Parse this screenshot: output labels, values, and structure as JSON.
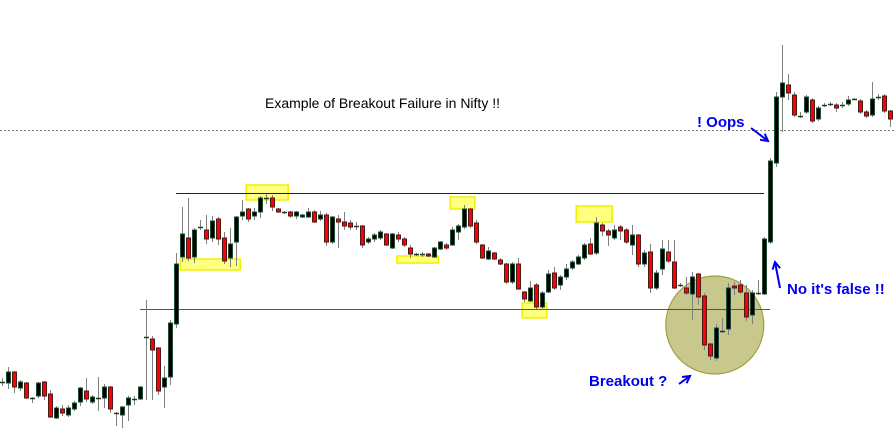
{
  "chart_data": {
    "type": "candlestick",
    "title": "Example of Breakout Failure in Nifty !!",
    "xlabel": "",
    "ylabel": "",
    "axes_visible": false,
    "grid": false,
    "candle_format": [
      "open",
      "high",
      "low",
      "close"
    ],
    "colors": {
      "bull_body": "#000000",
      "bull_outline": "#1f4d33",
      "bear_body": "#ff0000",
      "bear_outline": "#4a1a1a",
      "wick": "#808080",
      "resistance_line": "#0010c8",
      "support_line": "#3048f0",
      "dotted_line": "#808080",
      "highlight": "#ffff80",
      "highlight_border": "#f0f000",
      "circle_fill": "#c8c88c",
      "circle_border": "#a0a040",
      "annotation_text": "#0000ee"
    },
    "candles": [
      [
        48,
        52,
        44,
        48
      ],
      [
        47,
        63,
        41,
        58
      ],
      [
        58,
        59,
        37,
        43
      ],
      [
        42,
        50,
        39,
        48
      ],
      [
        47,
        48,
        31,
        32
      ],
      [
        32,
        33,
        27,
        32
      ],
      [
        34,
        48,
        32,
        47
      ],
      [
        48,
        49,
        30,
        34
      ],
      [
        36,
        40,
        12,
        13
      ],
      [
        12,
        24,
        11,
        22
      ],
      [
        21,
        25,
        14,
        17
      ],
      [
        15,
        25,
        13,
        22
      ],
      [
        21,
        29,
        19,
        27
      ],
      [
        28,
        43,
        24,
        42
      ],
      [
        39,
        52,
        28,
        31
      ],
      [
        28,
        35,
        26,
        33
      ],
      [
        32,
        53,
        19,
        32
      ],
      [
        32,
        46,
        22,
        43
      ],
      [
        43,
        44,
        17,
        21
      ],
      [
        17,
        18,
        4,
        17
      ],
      [
        15,
        24,
        2,
        23
      ],
      [
        25,
        34,
        9,
        32
      ],
      [
        31,
        34,
        25,
        31
      ],
      [
        31,
        44,
        30,
        43
      ],
      [
        93,
        130,
        30,
        93
      ],
      [
        91,
        94,
        30,
        80
      ],
      [
        82,
        83,
        35,
        39
      ],
      [
        43,
        64,
        22,
        52
      ],
      [
        53,
        110,
        45,
        107
      ],
      [
        106,
        177,
        102,
        166
      ],
      [
        173,
        223,
        168,
        196
      ],
      [
        192,
        232,
        169,
        172
      ],
      [
        173,
        202,
        167,
        200
      ],
      [
        203,
        210,
        200,
        203
      ],
      [
        200,
        215,
        186,
        191
      ],
      [
        192,
        214,
        188,
        209
      ],
      [
        211,
        213,
        185,
        191
      ],
      [
        192,
        198,
        166,
        169
      ],
      [
        172,
        202,
        163,
        186
      ],
      [
        188,
        214,
        164,
        213
      ],
      [
        214,
        230,
        210,
        218
      ],
      [
        221,
        222,
        208,
        211
      ],
      [
        214,
        222,
        210,
        218
      ],
      [
        218,
        234,
        212,
        232
      ],
      [
        232,
        236,
        226,
        232
      ],
      [
        232,
        235,
        219,
        223
      ],
      [
        221,
        222,
        217,
        218
      ],
      [
        218,
        219,
        216,
        218
      ],
      [
        218,
        219,
        212,
        214
      ],
      [
        214,
        219,
        211,
        218
      ],
      [
        213,
        216,
        212,
        215
      ],
      [
        213,
        222,
        212,
        218
      ],
      [
        218,
        220,
        207,
        208
      ],
      [
        211,
        219,
        209,
        215
      ],
      [
        215,
        217,
        184,
        188
      ],
      [
        188,
        214,
        186,
        213
      ],
      [
        211,
        215,
        182,
        208
      ],
      [
        208,
        218,
        200,
        204
      ],
      [
        207,
        210,
        200,
        203
      ],
      [
        204,
        208,
        200,
        204
      ],
      [
        204,
        205,
        182,
        185
      ],
      [
        188,
        193,
        186,
        191
      ],
      [
        191,
        197,
        188,
        195
      ],
      [
        192,
        200,
        190,
        198
      ],
      [
        196,
        197,
        184,
        185
      ],
      [
        182,
        197,
        181,
        196
      ],
      [
        195,
        198,
        188,
        191
      ],
      [
        191,
        193,
        183,
        185
      ],
      [
        182,
        185,
        172,
        176
      ],
      [
        176,
        177,
        174,
        176
      ],
      [
        176,
        178,
        173,
        176
      ],
      [
        176,
        177,
        173,
        174
      ],
      [
        173,
        183,
        172,
        182
      ],
      [
        181,
        189,
        180,
        188
      ],
      [
        185,
        187,
        180,
        182
      ],
      [
        185,
        203,
        184,
        200
      ],
      [
        198,
        206,
        190,
        204
      ],
      [
        203,
        225,
        201,
        221
      ],
      [
        221,
        222,
        202,
        204
      ],
      [
        207,
        210,
        186,
        188
      ],
      [
        185,
        186,
        171,
        172
      ],
      [
        171,
        183,
        170,
        179
      ],
      [
        177,
        178,
        170,
        171
      ],
      [
        170,
        172,
        165,
        166
      ],
      [
        166,
        167,
        146,
        148
      ],
      [
        148,
        168,
        146,
        166
      ],
      [
        166,
        172,
        140,
        141
      ],
      [
        138,
        139,
        128,
        131
      ],
      [
        129,
        149,
        128,
        142
      ],
      [
        145,
        147,
        121,
        123
      ],
      [
        123,
        139,
        120,
        137
      ],
      [
        138,
        160,
        137,
        156
      ],
      [
        157,
        163,
        140,
        142
      ],
      [
        145,
        155,
        140,
        153
      ],
      [
        153,
        166,
        150,
        161
      ],
      [
        162,
        170,
        160,
        168
      ],
      [
        166,
        175,
        165,
        173
      ],
      [
        172,
        187,
        170,
        185
      ],
      [
        186,
        192,
        175,
        176
      ],
      [
        177,
        213,
        175,
        207
      ],
      [
        205,
        207,
        194,
        199
      ],
      [
        199,
        201,
        184,
        195
      ],
      [
        192,
        205,
        190,
        200
      ],
      [
        203,
        205,
        190,
        199
      ],
      [
        200,
        202,
        186,
        188
      ],
      [
        185,
        205,
        175,
        195
      ],
      [
        195,
        196,
        163,
        166
      ],
      [
        166,
        180,
        163,
        177
      ],
      [
        178,
        186,
        137,
        142
      ],
      [
        142,
        160,
        140,
        157
      ],
      [
        161,
        190,
        155,
        181
      ],
      [
        178,
        190,
        167,
        169
      ],
      [
        168,
        190,
        141,
        142
      ],
      [
        145,
        147,
        143,
        145
      ],
      [
        142,
        153,
        135,
        137
      ],
      [
        136,
        158,
        110,
        153
      ],
      [
        156,
        157,
        125,
        133
      ],
      [
        134,
        137,
        80,
        85
      ],
      [
        86,
        87,
        70,
        74
      ],
      [
        72,
        106,
        69,
        102
      ],
      [
        99,
        112,
        97,
        99
      ],
      [
        101,
        147,
        95,
        142
      ],
      [
        144,
        148,
        135,
        142
      ],
      [
        145,
        150,
        136,
        138
      ],
      [
        137,
        145,
        109,
        113
      ],
      [
        115,
        140,
        106,
        137
      ],
      [
        137,
        150,
        135,
        137
      ],
      [
        136,
        193,
        135,
        191
      ],
      [
        188,
        272,
        186,
        269
      ],
      [
        267,
        338,
        263,
        333
      ],
      [
        333,
        385,
        298,
        347
      ],
      [
        345,
        356,
        330,
        337
      ],
      [
        335,
        338,
        313,
        315
      ],
      [
        314,
        318,
        312,
        314
      ],
      [
        318,
        335,
        316,
        333
      ],
      [
        330,
        332,
        307,
        309
      ],
      [
        311,
        324,
        309,
        322
      ],
      [
        325,
        327,
        323,
        325
      ],
      [
        326,
        328,
        324,
        326
      ],
      [
        325,
        327,
        318,
        322
      ],
      [
        325,
        328,
        322,
        325
      ],
      [
        326,
        334,
        324,
        330
      ],
      [
        331,
        332,
        330,
        331
      ],
      [
        329,
        331,
        316,
        318
      ],
      [
        318,
        320,
        312,
        314
      ],
      [
        315,
        348,
        313,
        331
      ],
      [
        333,
        336,
        330,
        333
      ],
      [
        334,
        336,
        317,
        319
      ],
      [
        319,
        320,
        303,
        311
      ]
    ],
    "horizontal_lines": [
      {
        "kind": "resistance",
        "price": 237,
        "from_candle": 29,
        "to_candle": 127,
        "style": "solid"
      },
      {
        "kind": "support",
        "price": 121,
        "from_candle": 23,
        "to_candle": 128,
        "style": "solid"
      },
      {
        "kind": "current-level",
        "price": 300,
        "style": "dotted",
        "full_width": true
      }
    ],
    "highlights": [
      {
        "from_candle": 29.7,
        "to_candle": 39.7,
        "price_low": 160,
        "price_high": 171
      },
      {
        "from_candle": 40.7,
        "to_candle": 47.7,
        "price_low": 230,
        "price_high": 245
      },
      {
        "from_candle": 65.8,
        "to_candle": 72.7,
        "price_low": 167,
        "price_high": 174
      },
      {
        "from_candle": 74.7,
        "to_candle": 78.8,
        "price_low": 221,
        "price_high": 233
      },
      {
        "from_candle": 95.7,
        "to_candle": 101.7,
        "price_low": 208,
        "price_high": 224
      },
      {
        "from_candle": 86.7,
        "to_candle": 90.8,
        "price_low": 112,
        "price_high": 127
      }
    ],
    "circle": {
      "center_candle": 118.8,
      "center_price": 105
    },
    "annotations": {
      "oops": "! Oops",
      "false": "No it's false !!",
      "breakout": "Breakout ?"
    }
  }
}
